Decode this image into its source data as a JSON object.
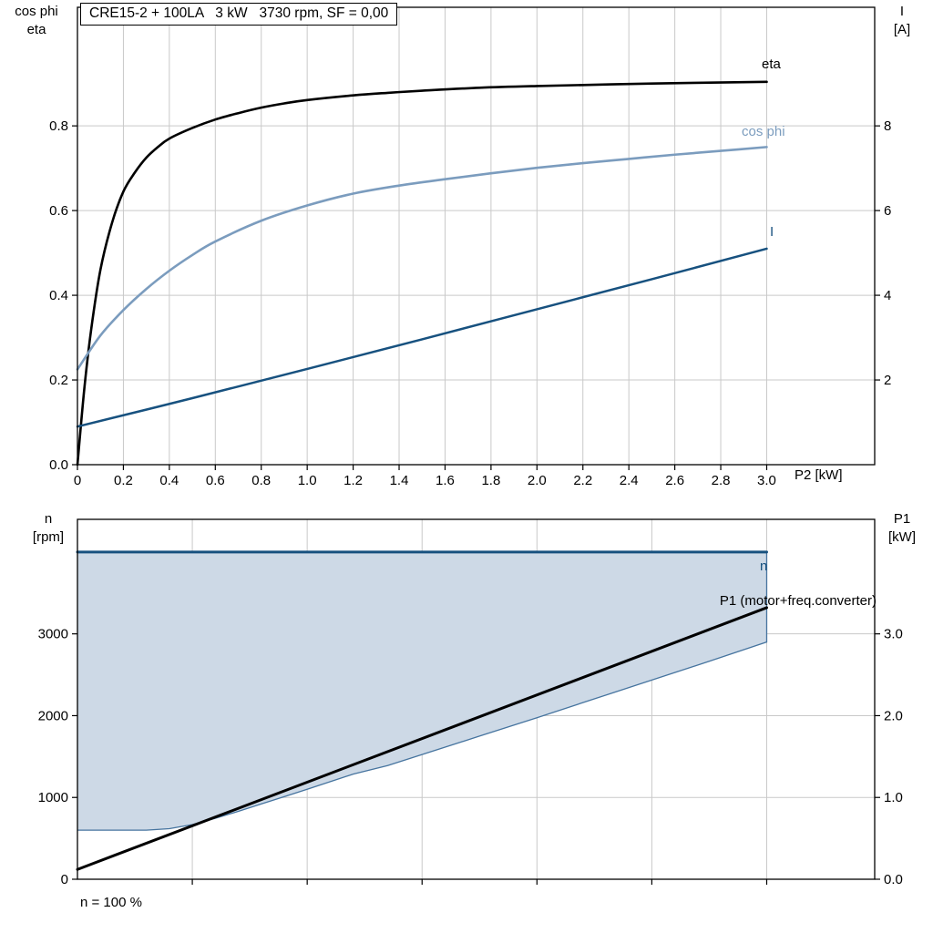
{
  "style": {
    "background": "#ffffff",
    "grid": "#c9c9c9",
    "frame": "#000000",
    "tick": "#000000"
  },
  "chart_data": [
    {
      "type": "line",
      "title": "CRE15-2 + 100LA   3 kW   3730 rpm, SF = 0,00",
      "x_axis": {
        "label": "P2 [kW]",
        "lim": [
          0,
          3.47
        ],
        "ticks": [
          0,
          0.2,
          0.4,
          0.6,
          0.8,
          1.0,
          1.2,
          1.4,
          1.6,
          1.8,
          2.0,
          2.2,
          2.4,
          2.6,
          2.8,
          3.0
        ],
        "tick_labels": [
          "0",
          "0.2",
          "0.4",
          "0.6",
          "0.8",
          "1.0",
          "1.2",
          "1.4",
          "1.6",
          "1.8",
          "2.0",
          "2.2",
          "2.4",
          "2.6",
          "2.8",
          "3.0"
        ],
        "grid": true
      },
      "left_axis": {
        "label_line1": "cos phi",
        "label_line2": "eta",
        "lim": [
          0,
          1.08
        ],
        "ticks": [
          0,
          0.2,
          0.4,
          0.6,
          0.8
        ],
        "tick_labels": [
          "0.0",
          "0.2",
          "0.4",
          "0.6",
          "0.8"
        ],
        "grid": true
      },
      "right_axis": {
        "label_line1": "I",
        "label_line2": "[A]",
        "lim": [
          0,
          10.8
        ],
        "ticks": [
          2,
          4,
          6,
          8
        ],
        "tick_labels": [
          "2",
          "4",
          "6",
          "8"
        ]
      },
      "series": [
        {
          "name": "eta",
          "color": "#000000",
          "axis": "left",
          "width": 2.6,
          "points": [
            [
              0,
              0
            ],
            [
              0.03,
              0.18
            ],
            [
              0.06,
              0.32
            ],
            [
              0.1,
              0.46
            ],
            [
              0.15,
              0.57
            ],
            [
              0.2,
              0.645
            ],
            [
              0.25,
              0.69
            ],
            [
              0.3,
              0.725
            ],
            [
              0.35,
              0.75
            ],
            [
              0.4,
              0.77
            ],
            [
              0.5,
              0.795
            ],
            [
              0.6,
              0.815
            ],
            [
              0.7,
              0.83
            ],
            [
              0.8,
              0.843
            ],
            [
              0.9,
              0.853
            ],
            [
              1.0,
              0.861
            ],
            [
              1.2,
              0.872
            ],
            [
              1.35,
              0.878
            ],
            [
              1.5,
              0.883
            ],
            [
              1.75,
              0.89
            ],
            [
              2.0,
              0.894
            ],
            [
              2.5,
              0.9
            ],
            [
              3.0,
              0.904
            ]
          ]
        },
        {
          "name": "cos phi",
          "color": "#7b9cbe",
          "axis": "left",
          "width": 2.6,
          "points": [
            [
              0,
              0.225
            ],
            [
              0.1,
              0.305
            ],
            [
              0.2,
              0.365
            ],
            [
              0.3,
              0.415
            ],
            [
              0.4,
              0.458
            ],
            [
              0.5,
              0.495
            ],
            [
              0.6,
              0.527
            ],
            [
              0.8,
              0.576
            ],
            [
              1.0,
              0.612
            ],
            [
              1.2,
              0.64
            ],
            [
              1.4,
              0.659
            ],
            [
              1.6,
              0.674
            ],
            [
              1.8,
              0.688
            ],
            [
              2.0,
              0.701
            ],
            [
              2.2,
              0.712
            ],
            [
              2.4,
              0.722
            ],
            [
              2.6,
              0.732
            ],
            [
              2.8,
              0.741
            ],
            [
              3.0,
              0.75
            ]
          ]
        },
        {
          "name": "I",
          "color": "#17517f",
          "axis": "right",
          "width": 2.5,
          "points": [
            [
              0,
              0.9
            ],
            [
              0.5,
              1.57
            ],
            [
              1.0,
              2.26
            ],
            [
              1.5,
              2.96
            ],
            [
              2.0,
              3.67
            ],
            [
              2.5,
              4.38
            ],
            [
              3.0,
              5.1
            ]
          ]
        }
      ]
    },
    {
      "type": "area",
      "annotation": "n = 100 %",
      "x_axis": {
        "label": "",
        "lim": [
          0,
          3.47
        ],
        "grid_ticks": [
          0.5,
          1.0,
          1.5,
          2.0,
          2.5,
          3.0
        ],
        "grid": true
      },
      "left_axis": {
        "label_line1": "n",
        "label_line2": "[rpm]",
        "lim": [
          0,
          4400
        ],
        "ticks": [
          0,
          1000,
          2000,
          3000
        ],
        "tick_labels": [
          "0",
          "1000",
          "2000",
          "3000"
        ],
        "grid": true
      },
      "right_axis": {
        "label_line1": "P1",
        "label_line2": "[kW]",
        "lim": [
          0,
          4.4
        ],
        "ticks": [
          0,
          1,
          2,
          3
        ],
        "tick_labels": [
          "0.0",
          "1.0",
          "2.0",
          "3.0"
        ]
      },
      "area": {
        "fill": "#cdd9e6",
        "border_color": "#46749f",
        "upper": 4000,
        "lower_boundary": [
          [
            0,
            600
          ],
          [
            0.3,
            600
          ],
          [
            0.4,
            618
          ],
          [
            0.5,
            668
          ],
          [
            0.6,
            745
          ],
          [
            0.7,
            830
          ],
          [
            0.8,
            920
          ],
          [
            0.9,
            1010
          ],
          [
            1.0,
            1100
          ],
          [
            1.2,
            1285
          ],
          [
            1.35,
            1390
          ],
          [
            1.5,
            1525
          ],
          [
            1.75,
            1750
          ],
          [
            2.0,
            1975
          ],
          [
            2.25,
            2205
          ],
          [
            2.5,
            2435
          ],
          [
            2.75,
            2665
          ],
          [
            3.0,
            2900
          ]
        ]
      },
      "series": [
        {
          "name": "n",
          "color": "#17517f",
          "axis": "left",
          "width": 3,
          "points": [
            [
              0,
              4000
            ],
            [
              3.0,
              4000
            ]
          ]
        },
        {
          "name": "P1 (motor+freq.converter)",
          "color": "#000000",
          "axis": "right",
          "width": 3,
          "points": [
            [
              0,
              0.12
            ],
            [
              3.0,
              3.32
            ]
          ]
        }
      ]
    }
  ]
}
